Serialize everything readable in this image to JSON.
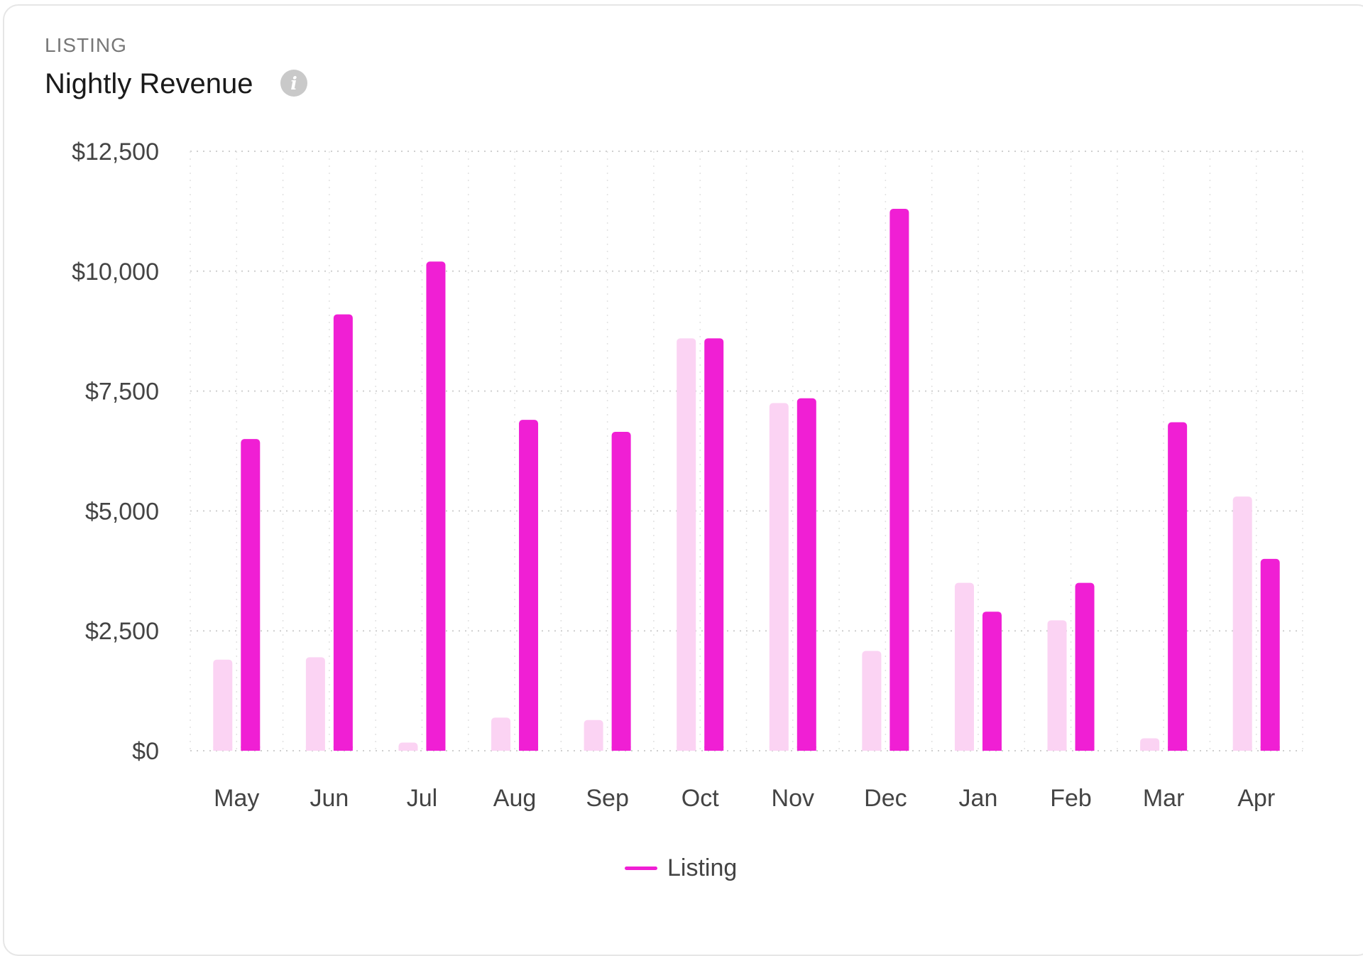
{
  "card": {
    "overline": "LISTING",
    "title": "Nightly Revenue",
    "info_icon": "info-icon"
  },
  "colors": {
    "series_primary": "#f01fd4",
    "series_secondary": "#fbd3f3",
    "grid": "#cfcfcf",
    "axis_text": "#444444"
  },
  "chart_data": {
    "type": "bar",
    "title": "Nightly Revenue",
    "xlabel": "",
    "ylabel": "",
    "ylim": [
      0,
      12500
    ],
    "y_ticks": [
      0,
      2500,
      5000,
      7500,
      10000,
      12500
    ],
    "y_tick_labels": [
      "$0",
      "$2,500",
      "$5,000",
      "$7,500",
      "$10,000",
      "$12,500"
    ],
    "categories": [
      "May",
      "Jun",
      "Jul",
      "Aug",
      "Sep",
      "Oct",
      "Nov",
      "Dec",
      "Jan",
      "Feb",
      "Mar",
      "Apr"
    ],
    "series": [
      {
        "name": "",
        "values": [
          1900,
          1950,
          170,
          690,
          640,
          8600,
          7250,
          2080,
          3500,
          2720,
          260,
          5300
        ]
      },
      {
        "name": "Listing",
        "values": [
          6500,
          9100,
          10200,
          6900,
          6650,
          8600,
          7350,
          11300,
          2900,
          3500,
          6850,
          4000
        ]
      }
    ],
    "grid": true,
    "legend_position": "bottom-center"
  },
  "legend": {
    "label": "Listing"
  }
}
